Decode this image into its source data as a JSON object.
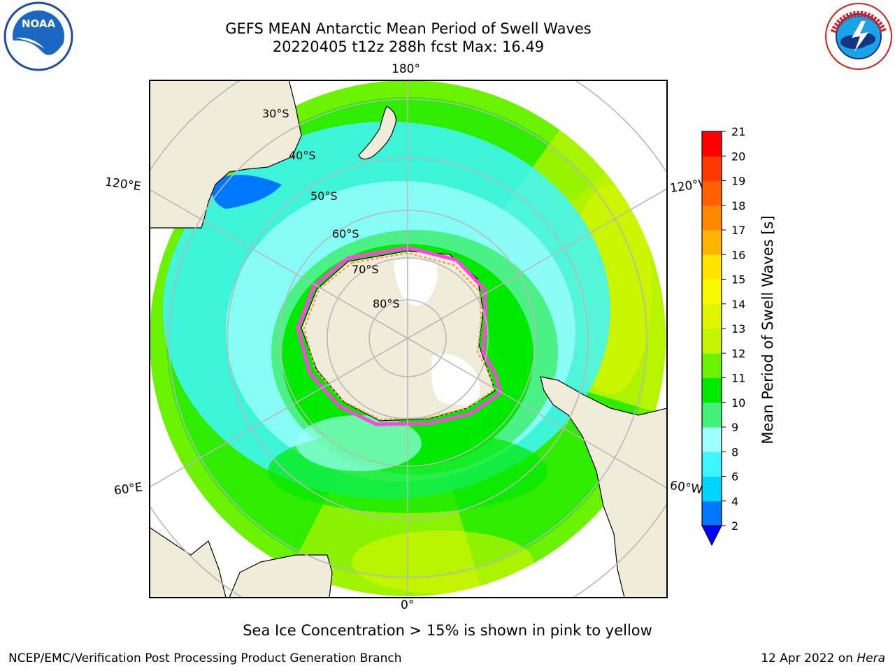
{
  "header": {
    "title": "GEFS MEAN Antarctic Mean Period of Swell Waves",
    "subtitle": "20220405 t12z 288h fcst   Max: 16.49"
  },
  "map": {
    "projection": "south-polar-stereographic",
    "longitude_labels": [
      {
        "text": "180°",
        "lon": 180
      },
      {
        "text": "120°E",
        "lon": 120
      },
      {
        "text": "120°W",
        "lon": -120
      },
      {
        "text": "60°E",
        "lon": 60
      },
      {
        "text": "60°W",
        "lon": -60
      },
      {
        "text": "0°",
        "lon": 0
      }
    ],
    "latitude_labels": [
      {
        "text": "30°S",
        "lat": -30
      },
      {
        "text": "40°S",
        "lat": -40
      },
      {
        "text": "50°S",
        "lat": -50
      },
      {
        "text": "60°S",
        "lat": -60
      },
      {
        "text": "70°S",
        "lat": -70
      },
      {
        "text": "80°S",
        "lat": -80
      }
    ],
    "colors": {
      "land": "#efecd9",
      "ice_shelf": "#ffffff",
      "sea_ice_edge": "#ff44e0",
      "sea_ice_inner": "#f5a050",
      "graticule": "#b8b8b8"
    }
  },
  "colorbar": {
    "label": "Mean Period of Swell Waves [s]",
    "ticks": [
      "2",
      "4",
      "6",
      "8",
      "9",
      "10",
      "11",
      "12",
      "13",
      "14",
      "15",
      "16",
      "17",
      "18",
      "19",
      "20",
      "21"
    ],
    "bins": [
      {
        "from": 2,
        "to": 4,
        "color": "#0077ff"
      },
      {
        "from": 4,
        "to": 6,
        "color": "#00d5ff"
      },
      {
        "from": 6,
        "to": 8,
        "color": "#3ff5ff"
      },
      {
        "from": 8,
        "to": 9,
        "color": "#a0ffff"
      },
      {
        "from": 9,
        "to": 10,
        "color": "#45f07a"
      },
      {
        "from": 10,
        "to": 11,
        "color": "#00ea00"
      },
      {
        "from": 11,
        "to": 12,
        "color": "#6af200"
      },
      {
        "from": 12,
        "to": 13,
        "color": "#c4f500"
      },
      {
        "from": 13,
        "to": 14,
        "color": "#e0f500"
      },
      {
        "from": 14,
        "to": 15,
        "color": "#f8f800"
      },
      {
        "from": 15,
        "to": 16,
        "color": "#ffe400"
      },
      {
        "from": 16,
        "to": 17,
        "color": "#ffb400"
      },
      {
        "from": 17,
        "to": 18,
        "color": "#ff8800"
      },
      {
        "from": 18,
        "to": 19,
        "color": "#ff6000"
      },
      {
        "from": 19,
        "to": 20,
        "color": "#ff3800"
      },
      {
        "from": 20,
        "to": 21,
        "color": "#ff0000"
      }
    ],
    "under_color": "#0000ff"
  },
  "caption": "Sea Ice Concentration > 15% is shown in pink to yellow",
  "footer": {
    "left": "NCEP/EMC/Verification Post Processing Product Generation Branch",
    "right_date": "12 Apr 2022 on ",
    "right_machine": "Hera"
  }
}
